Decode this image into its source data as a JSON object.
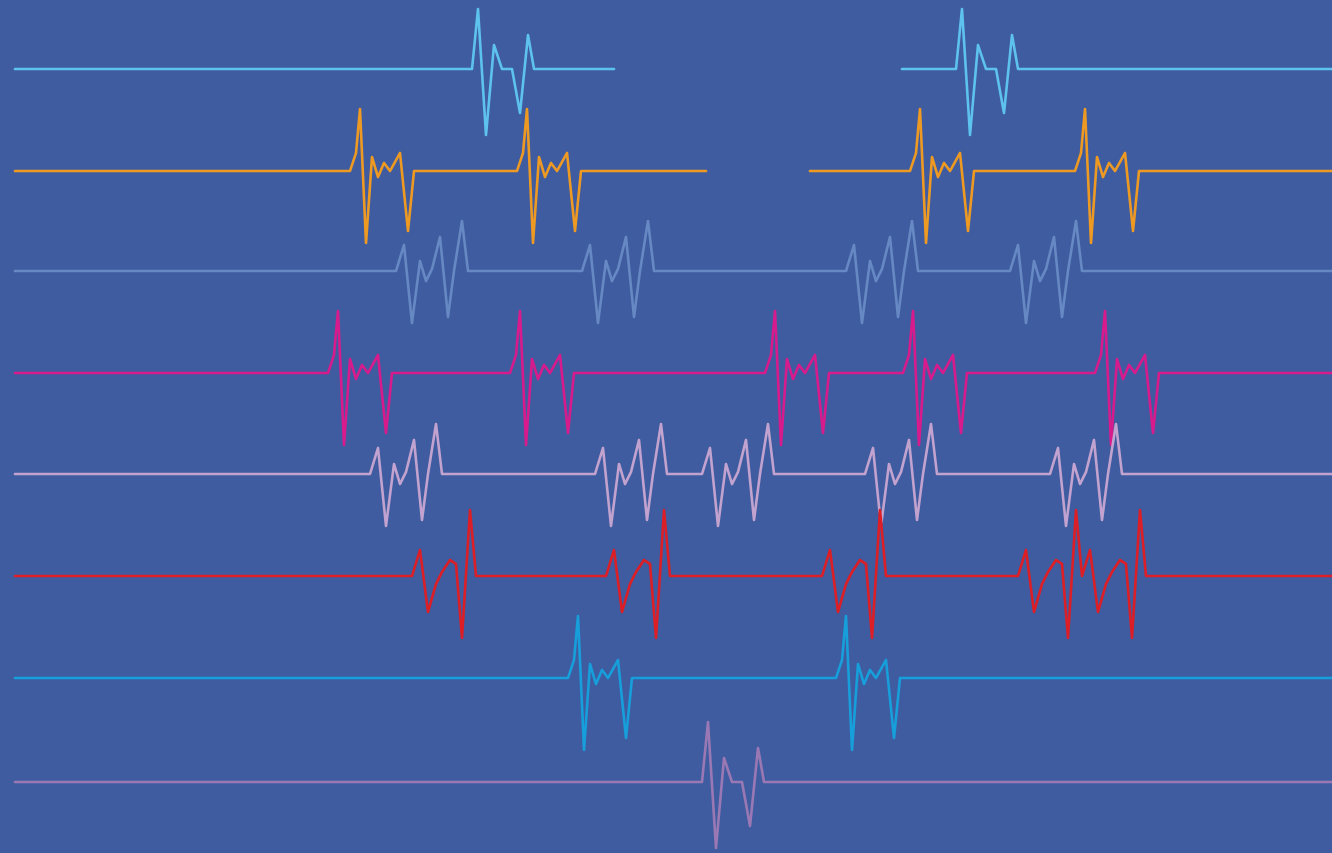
{
  "background": "#3f5ca0",
  "traces": [
    {
      "name": "trace-light-blue",
      "color": "#5ec2ee",
      "beats": 2
    },
    {
      "name": "trace-orange",
      "color": "#ee9a22",
      "beats": 4
    },
    {
      "name": "trace-slate-blue",
      "color": "#6688c3",
      "beats": 4
    },
    {
      "name": "trace-magenta",
      "color": "#d81b8c",
      "beats": 5
    },
    {
      "name": "trace-lavender",
      "color": "#c2a2ce",
      "beats": 5
    },
    {
      "name": "trace-red",
      "color": "#dc1e26",
      "beats": 5
    },
    {
      "name": "trace-cyan",
      "color": "#169fdb",
      "beats": 2
    },
    {
      "name": "trace-violet",
      "color": "#9a78b4",
      "beats": 1
    }
  ]
}
